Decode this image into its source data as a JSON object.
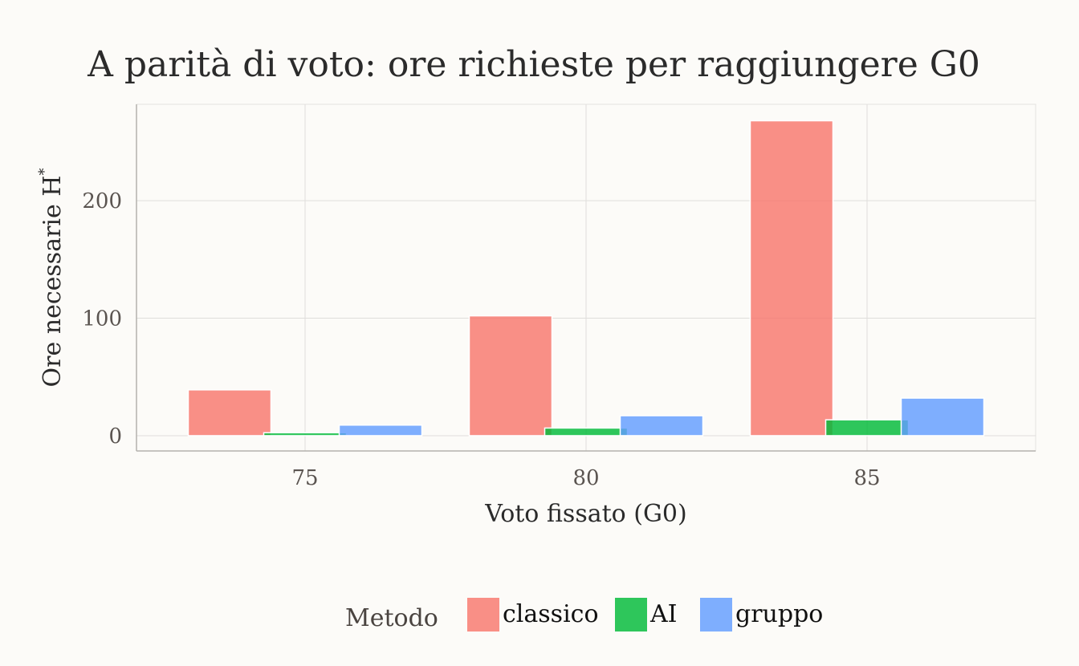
{
  "chart_data": {
    "type": "bar",
    "title": "A parità di voto: ore richieste per raggiungere G0",
    "xlabel": "Voto fissato (G0)",
    "ylabel": "Ore necessarie H",
    "ylabel_superscript": "*",
    "categories": [
      "75",
      "80",
      "85"
    ],
    "ylim": [
      -13,
      282
    ],
    "yticks": [
      0,
      100,
      200
    ],
    "grid": true,
    "series": [
      {
        "name": "classico",
        "color": "#f8766d",
        "values": [
          39,
          102,
          268
        ]
      },
      {
        "name": "AI",
        "color": "#00ba38",
        "values": [
          2.5,
          6.5,
          13.5
        ]
      },
      {
        "name": "gruppo",
        "color": "#619cff",
        "values": [
          9,
          17,
          32
        ]
      }
    ],
    "legend": {
      "title": "Metodo",
      "position": "bottom"
    }
  }
}
